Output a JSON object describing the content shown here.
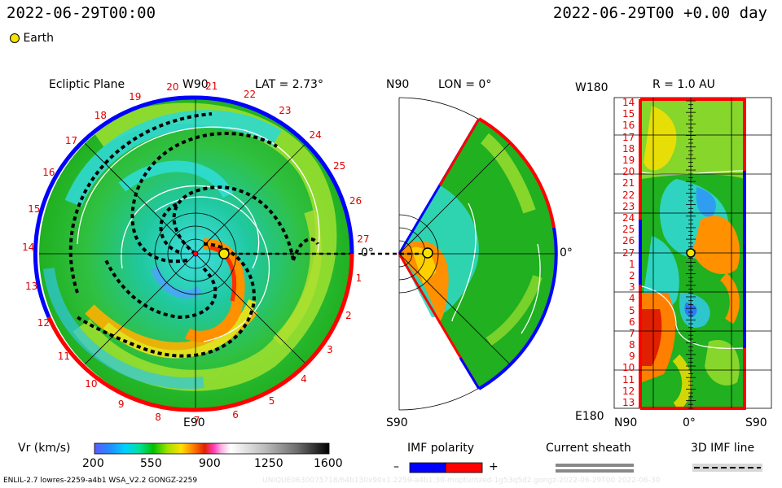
{
  "header": {
    "datetime_left": "2022-06-29T00:00",
    "datetime_right": "2022-06-29T00 +0.00 day",
    "legend_earth": "Earth"
  },
  "ecliptic_panel": {
    "title": "Ecliptic Plane",
    "top_label": "W90",
    "lat_label": "LAT = 2.73°",
    "bottom_label": "E90",
    "right_label": "0°",
    "rim_numbers": [
      "20",
      "21",
      "22",
      "23",
      "24",
      "25",
      "26",
      "27",
      "1",
      "2",
      "3",
      "4",
      "5",
      "6",
      "7",
      "8",
      "9",
      "10",
      "11",
      "12",
      "13",
      "14",
      "15",
      "16",
      "17",
      "18",
      "19"
    ]
  },
  "meridional_panel": {
    "top_label": "N90",
    "lon_label": "LON = 0°",
    "bottom_label": "S90",
    "right_label": "0°"
  },
  "radial_panel": {
    "top_left_label": "W180",
    "r_label": "R = 1.0 AU",
    "bottom_left_label": "E180",
    "x_labels": [
      "N90",
      "0°",
      "S90"
    ],
    "y_labels": [
      "14",
      "15",
      "16",
      "17",
      "18",
      "19",
      "20",
      "21",
      "22",
      "23",
      "24",
      "25",
      "26",
      "27",
      "1",
      "2",
      "3",
      "4",
      "5",
      "6",
      "7",
      "8",
      "9",
      "10",
      "11",
      "12",
      "13"
    ]
  },
  "colorbar": {
    "label": "Vr (km/s)",
    "ticks": [
      "200",
      "550",
      "900",
      "1250",
      "1600"
    ]
  },
  "imf_legend": {
    "title": "IMF polarity",
    "minus": "–",
    "plus": "+",
    "colors": {
      "negative": "#0000ff",
      "positive": "#ff0000"
    }
  },
  "sheath_legend": {
    "title": "Current sheath"
  },
  "imf_line_legend": {
    "title": "3D IMF line"
  },
  "footer": {
    "left": "ENLIL-2.7 lowres-2259-a4b1 WSA_V2.2 GONGZ-2259",
    "right": "UNIQUE0630075718/64b130x90x1.2259-a4b1.30-mopturnzed-1g53q5d2.gongz-2022-06-29T00  2022-06-30"
  },
  "chart_data": {
    "type": "heatmap",
    "quantity": "Vr (km/s)",
    "colorbar_range": [
      200,
      1600
    ],
    "earth_position": {
      "lon_deg": 0,
      "lat_deg": 2.73,
      "r_au": 1.0
    },
    "colors": {
      "slow": "#00b000",
      "mid": "#00e0e0",
      "fast": "#ff8000",
      "very_fast": "#ff0000"
    }
  }
}
